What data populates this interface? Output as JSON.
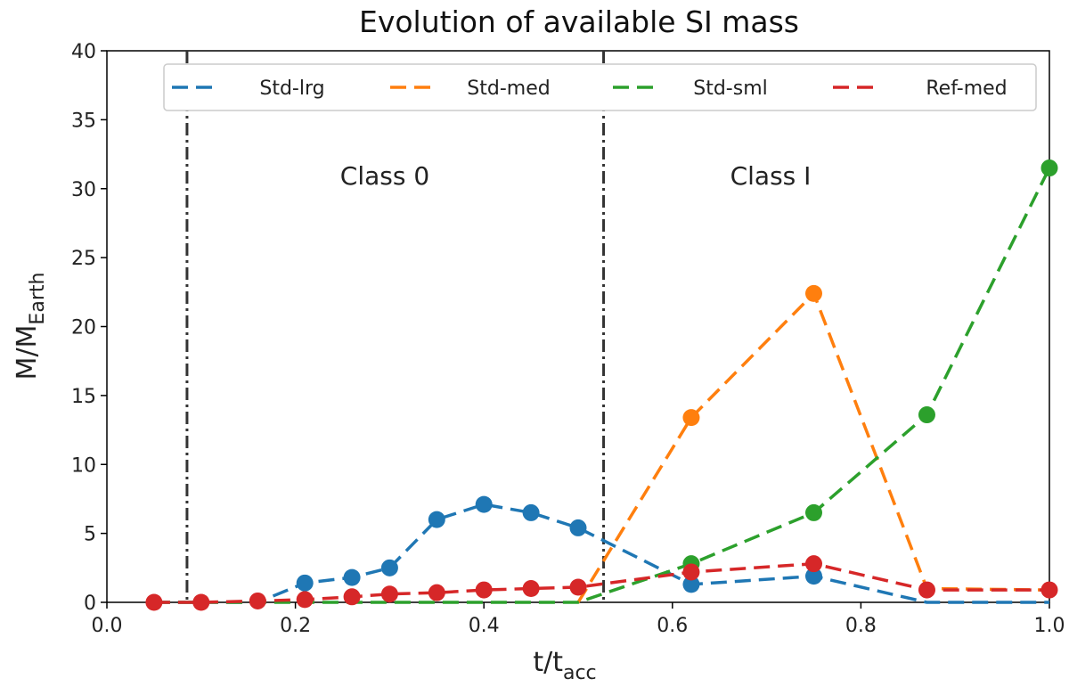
{
  "chart_data": {
    "type": "line",
    "title": "Evolution of available SI mass",
    "xlabel": {
      "main": "t/t",
      "sub": "acc"
    },
    "ylabel": {
      "main": "M/M",
      "sub": "Earth"
    },
    "xlim": [
      0.0,
      1.0
    ],
    "ylim": [
      0,
      40
    ],
    "xticks": [
      "0.0",
      "0.2",
      "0.4",
      "0.6",
      "0.8",
      "1.0"
    ],
    "xtick_values": [
      0.0,
      0.2,
      0.4,
      0.6,
      0.8,
      1.0
    ],
    "yticks": [
      "0",
      "5",
      "10",
      "15",
      "20",
      "25",
      "30",
      "35",
      "40"
    ],
    "ytick_values": [
      0,
      5,
      10,
      15,
      20,
      25,
      30,
      35,
      40
    ],
    "grid": false,
    "legend_location": "top, spanning width",
    "vlines": [
      {
        "x": 0.085,
        "style": "dash-dot",
        "color": "#333333"
      },
      {
        "x": 0.527,
        "style": "dash-dot",
        "color": "#333333"
      }
    ],
    "annotations": [
      {
        "text": "Class 0",
        "x": 0.3,
        "y": 30.5
      },
      {
        "text": "Class I",
        "x": 0.71,
        "y": 30.5
      }
    ],
    "series": [
      {
        "name": "Std-lrg",
        "color": "#1f77b4",
        "line": "dashed",
        "x": [
          0.05,
          0.1,
          0.16,
          0.21,
          0.26,
          0.3,
          0.35,
          0.4,
          0.45,
          0.5,
          0.62,
          0.75,
          0.87,
          1.0
        ],
        "y": [
          0,
          0,
          0,
          1.4,
          1.8,
          2.5,
          6.0,
          7.1,
          6.5,
          5.4,
          1.3,
          1.9,
          0,
          0
        ],
        "markers": [
          false,
          false,
          false,
          true,
          true,
          true,
          true,
          true,
          true,
          true,
          true,
          true,
          false,
          false
        ]
      },
      {
        "name": "Std-med",
        "color": "#ff7f0e",
        "line": "dashed",
        "x": [
          0.5,
          0.62,
          0.75,
          0.87,
          1.0
        ],
        "y": [
          0,
          13.4,
          22.4,
          1.0,
          0.9
        ],
        "markers": [
          false,
          true,
          true,
          false,
          false
        ]
      },
      {
        "name": "Std-sml",
        "color": "#2ca02c",
        "line": "dashed",
        "x": [
          0.05,
          0.1,
          0.16,
          0.21,
          0.26,
          0.3,
          0.35,
          0.4,
          0.45,
          0.5,
          0.62,
          0.75,
          0.87,
          1.0
        ],
        "y": [
          0,
          0,
          0,
          0,
          0,
          0,
          0,
          0,
          0,
          0,
          2.8,
          6.5,
          13.6,
          31.5
        ],
        "markers": [
          false,
          false,
          false,
          false,
          false,
          false,
          false,
          false,
          false,
          false,
          true,
          true,
          true,
          true
        ]
      },
      {
        "name": "Ref-med",
        "color": "#d62728",
        "line": "dashed",
        "x": [
          0.05,
          0.1,
          0.16,
          0.21,
          0.26,
          0.3,
          0.35,
          0.4,
          0.45,
          0.5,
          0.62,
          0.75,
          0.87,
          1.0
        ],
        "y": [
          0,
          0,
          0.1,
          0.2,
          0.4,
          0.6,
          0.7,
          0.9,
          1.0,
          1.1,
          2.2,
          2.8,
          0.9,
          0.9
        ],
        "markers": [
          true,
          true,
          true,
          true,
          true,
          true,
          true,
          true,
          true,
          true,
          true,
          true,
          true,
          true
        ]
      }
    ]
  }
}
